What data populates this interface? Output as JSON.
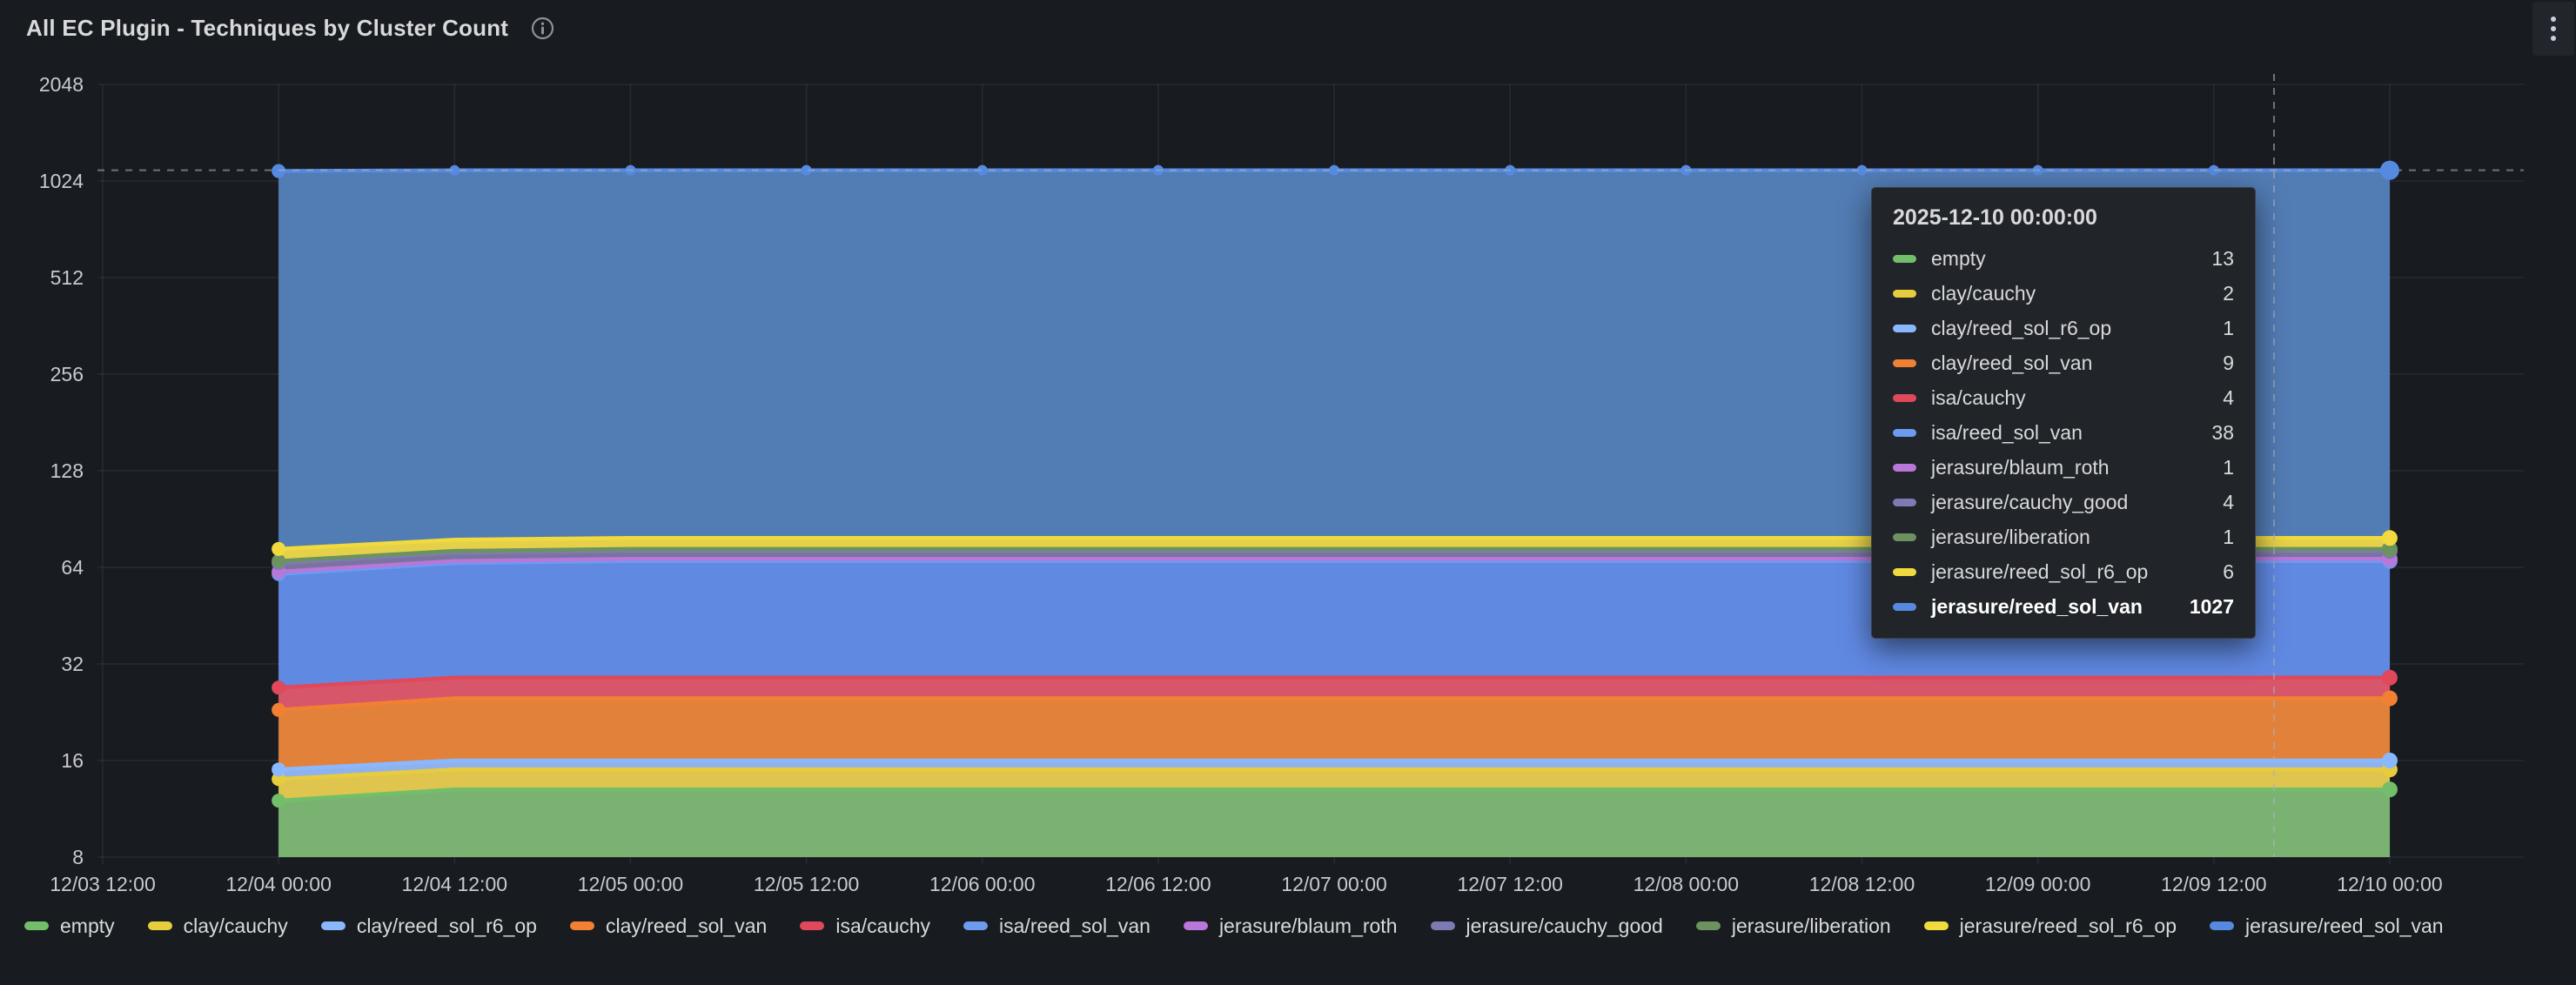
{
  "panel": {
    "title": "All EC Plugin - Techniques by Cluster Count",
    "info_icon": "info-circle",
    "menu_icon": "kebab-vertical-dots"
  },
  "tooltip": {
    "timestamp": "2025-12-10 00:00:00",
    "rows": [
      {
        "label": "empty",
        "value": "13",
        "color": "#73BF69",
        "bold": false
      },
      {
        "label": "clay/cauchy",
        "value": "2",
        "color": "#E7CC3D",
        "bold": false
      },
      {
        "label": "clay/reed_sol_r6_op",
        "value": "1",
        "color": "#8AB8FF",
        "bold": false
      },
      {
        "label": "clay/reed_sol_van",
        "value": "9",
        "color": "#F28033",
        "bold": false
      },
      {
        "label": "isa/cauchy",
        "value": "4",
        "color": "#E0485C",
        "bold": false
      },
      {
        "label": "isa/reed_sol_van",
        "value": "38",
        "color": "#6C9BF0",
        "bold": false
      },
      {
        "label": "jerasure/blaum_roth",
        "value": "1",
        "color": "#B877D9",
        "bold": false
      },
      {
        "label": "jerasure/cauchy_good",
        "value": "4",
        "color": "#7D7BB3",
        "bold": false
      },
      {
        "label": "jerasure/liberation",
        "value": "1",
        "color": "#6C935F",
        "bold": false
      },
      {
        "label": "jerasure/reed_sol_r6_op",
        "value": "6",
        "color": "#F0DA3E",
        "bold": false
      },
      {
        "label": "jerasure/reed_sol_van",
        "value": "1027",
        "color": "#568AE0",
        "bold": true
      }
    ]
  },
  "chart_data": {
    "type": "area",
    "stacked": true,
    "y_scale": "log2",
    "title": "All EC Plugin - Techniques by Cluster Count",
    "xlabel": "",
    "ylabel": "",
    "ylim": [
      8,
      2048
    ],
    "grid": true,
    "legend_position": "bottom",
    "x_tick_labels": [
      "12/03 12:00",
      "12/04 00:00",
      "12/04 12:00",
      "12/05 00:00",
      "12/05 12:00",
      "12/06 00:00",
      "12/06 12:00",
      "12/07 00:00",
      "12/07 12:00",
      "12/08 00:00",
      "12/08 12:00",
      "12/09 00:00",
      "12/09 12:00",
      "12/10 00:00"
    ],
    "y_tick_labels": [
      2048,
      1024,
      512,
      256,
      128,
      64,
      32,
      16,
      8
    ],
    "x": [
      "12/04 00:00",
      "12/04 12:00",
      "12/05 00:00",
      "12/05 12:00",
      "12/06 00:00",
      "12/06 12:00",
      "12/07 00:00",
      "12/07 12:00",
      "12/08 00:00",
      "12/08 12:00",
      "12/09 00:00",
      "12/09 12:00",
      "12/10 00:00"
    ],
    "hovered_time": "2025-12-10 00:00:00",
    "series": [
      {
        "name": "empty",
        "color": "#73BF69",
        "fill": "#7AB371",
        "values": [
          12,
          13,
          13,
          13,
          13,
          13,
          13,
          13,
          13,
          13,
          13,
          13,
          13
        ]
      },
      {
        "name": "clay/cauchy",
        "color": "#E7CC3D",
        "fill": "#DFC44E",
        "values": [
          2,
          2,
          2,
          2,
          2,
          2,
          2,
          2,
          2,
          2,
          2,
          2,
          2
        ]
      },
      {
        "name": "clay/reed_sol_r6_op",
        "color": "#8AB8FF",
        "fill": "#8FB2EE",
        "values": [
          1,
          1,
          1,
          1,
          1,
          1,
          1,
          1,
          1,
          1,
          1,
          1,
          1
        ]
      },
      {
        "name": "clay/reed_sol_van",
        "color": "#F28033",
        "fill": "#E2813A",
        "values": [
          8,
          9,
          9,
          9,
          9,
          9,
          9,
          9,
          9,
          9,
          9,
          9,
          9
        ]
      },
      {
        "name": "isa/cauchy",
        "color": "#E0485C",
        "fill": "#D8566A",
        "values": [
          4,
          4,
          4,
          4,
          4,
          4,
          4,
          4,
          4,
          4,
          4,
          4,
          4
        ]
      },
      {
        "name": "isa/reed_sol_van",
        "color": "#6C9BF0",
        "fill": "#6089E2",
        "values": [
          34,
          37,
          38,
          38,
          38,
          38,
          38,
          38,
          38,
          38,
          38,
          38,
          38
        ]
      },
      {
        "name": "jerasure/blaum_roth",
        "color": "#B877D9",
        "fill": "#BC72D4",
        "values": [
          1,
          1,
          1,
          1,
          1,
          1,
          1,
          1,
          1,
          1,
          1,
          1,
          1
        ]
      },
      {
        "name": "jerasure/cauchy_good",
        "color": "#7D7BB3",
        "fill": "#7A739F",
        "values": [
          4,
          4,
          4,
          4,
          4,
          4,
          4,
          4,
          4,
          4,
          4,
          4,
          4
        ]
      },
      {
        "name": "jerasure/liberation",
        "color": "#6C935F",
        "fill": "#5D8456",
        "values": [
          1,
          1,
          1,
          1,
          1,
          1,
          1,
          1,
          1,
          1,
          1,
          1,
          1
        ]
      },
      {
        "name": "jerasure/reed_sol_r6_op",
        "color": "#F0DA3E",
        "fill": "#E5D04A",
        "values": [
          6,
          6,
          6,
          6,
          6,
          6,
          6,
          6,
          6,
          6,
          6,
          6,
          6
        ]
      },
      {
        "name": "jerasure/reed_sol_van",
        "color": "#568AE0",
        "fill": "#527CB4",
        "values": [
          1027,
          1027,
          1027,
          1027,
          1027,
          1027,
          1027,
          1027,
          1027,
          1027,
          1027,
          1027,
          1027
        ]
      }
    ]
  },
  "colors": {
    "background": "#181b1f",
    "grid": "rgba(204,204,220,0.09)",
    "axis_text": "#c8c9d3",
    "crosshair": "rgba(170,174,190,0.6)"
  }
}
